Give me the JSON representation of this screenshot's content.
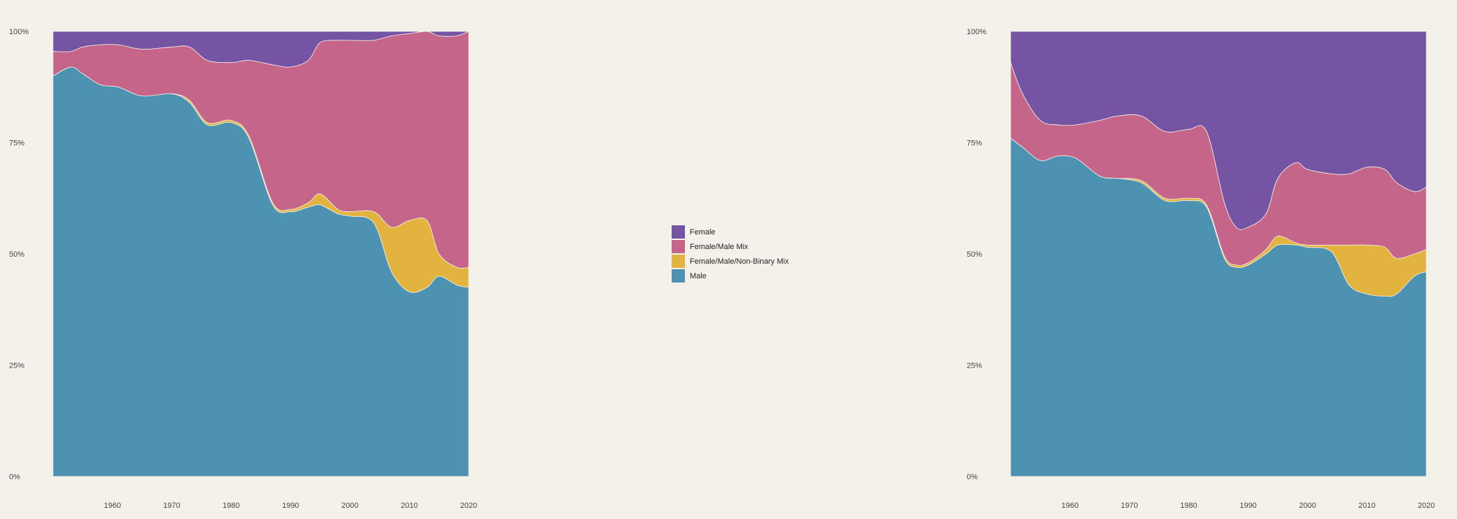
{
  "chart_data": [
    {
      "type": "area",
      "stacked": true,
      "normalized": true,
      "x_ticks": [
        1960,
        1970,
        1980,
        1990,
        2000,
        2010,
        2020
      ],
      "y_ticks": [
        "0%",
        "25%",
        "50%",
        "75%",
        "100%"
      ],
      "xlim": [
        1950,
        2020
      ],
      "ylim": [
        0,
        100
      ],
      "grid": false,
      "x": [
        1950,
        1953,
        1955,
        1958,
        1961,
        1965,
        1970,
        1973,
        1976,
        1980,
        1983,
        1987,
        1990,
        1993,
        1995,
        1998,
        2000,
        2004,
        2007,
        2010,
        2013,
        2015,
        2018,
        2020
      ],
      "series": [
        {
          "name": "Male",
          "values": [
            90,
            92,
            90.5,
            88,
            87.5,
            85.5,
            86,
            84,
            79,
            79.5,
            76,
            61,
            59.5,
            60.5,
            61,
            59,
            58.5,
            57,
            46,
            41.5,
            42.5,
            45,
            43,
            42.5
          ]
        },
        {
          "name": "Female/Male/Non-Binary Mix",
          "values": [
            0,
            0,
            0,
            0,
            0,
            0,
            0,
            0.5,
            0.5,
            0.5,
            0.5,
            0.5,
            0.5,
            1,
            2.5,
            1,
            1,
            2.5,
            10,
            16,
            15,
            5,
            4,
            4.5
          ]
        },
        {
          "name": "Female/Male Mix",
          "values": [
            5.5,
            3.5,
            6,
            9,
            9.5,
            10.5,
            10.5,
            12,
            14,
            13,
            17,
            31,
            32,
            32,
            34,
            38,
            38.5,
            38.5,
            43,
            42,
            42.5,
            49,
            52,
            53
          ]
        },
        {
          "name": "Female",
          "values": [
            4.5,
            4.5,
            3.5,
            3,
            3,
            4,
            3.5,
            3.5,
            6.5,
            7,
            6.5,
            7.5,
            8,
            6.5,
            2.5,
            2,
            2,
            2,
            1,
            0.5,
            0,
            1,
            1,
            0
          ]
        }
      ]
    },
    {
      "type": "area",
      "stacked": true,
      "normalized": true,
      "x_ticks": [
        1960,
        1970,
        1980,
        1990,
        2000,
        2010,
        2020
      ],
      "y_ticks": [
        "0%",
        "25%",
        "50%",
        "75%",
        "100%"
      ],
      "xlim": [
        1950,
        2020
      ],
      "ylim": [
        0,
        100
      ],
      "grid": false,
      "x": [
        1950,
        1952,
        1955,
        1958,
        1961,
        1965,
        1968,
        1972,
        1976,
        1980,
        1983,
        1986,
        1988,
        1990,
        1993,
        1995,
        1998,
        2000,
        2004,
        2007,
        2010,
        2013,
        2015,
        2018,
        2020
      ],
      "series": [
        {
          "name": "Male",
          "values": [
            76,
            74,
            71,
            72,
            71.5,
            67.5,
            67,
            66,
            62,
            62,
            60.5,
            49,
            47,
            47.5,
            50,
            52,
            52,
            51.5,
            50.5,
            43,
            41,
            40.5,
            41,
            45,
            46
          ]
        },
        {
          "name": "Female/Male/Non-Binary Mix",
          "values": [
            0,
            0,
            0,
            0,
            0,
            0,
            0,
            0.5,
            0.5,
            0.5,
            0.5,
            0.5,
            0.5,
            0.5,
            1,
            2,
            0.5,
            0.5,
            1.5,
            9,
            11,
            11,
            8,
            5,
            5
          ]
        },
        {
          "name": "Female/Male Mix",
          "values": [
            17,
            12,
            9,
            7,
            7.5,
            12.5,
            14,
            14.5,
            15,
            15.5,
            16.5,
            12,
            8.5,
            8,
            8,
            13,
            18,
            17,
            16,
            16,
            17.5,
            17.5,
            17,
            14,
            14
          ]
        },
        {
          "name": "Female",
          "values": [
            7,
            14,
            20,
            21,
            21,
            20,
            19,
            19,
            22.5,
            22,
            22.5,
            38.5,
            44,
            44,
            41,
            33,
            29.5,
            31,
            32,
            32,
            30.5,
            31,
            34,
            36,
            35
          ]
        }
      ]
    }
  ],
  "legend": {
    "placement": "center",
    "items": [
      {
        "label": "Female",
        "color": "#7654a4"
      },
      {
        "label": "Female/Male Mix",
        "color": "#c5658a"
      },
      {
        "label": "Female/Male/Non-Binary Mix",
        "color": "#e2b43f"
      },
      {
        "label": "Male",
        "color": "#4d92b0"
      }
    ]
  },
  "colors": {
    "Male": "#4d92b0",
    "Female/Male/Non-Binary Mix": "#e2b43f",
    "Female/Male Mix": "#c5658a",
    "Female": "#7654a4",
    "background": "#f3f1ea"
  }
}
